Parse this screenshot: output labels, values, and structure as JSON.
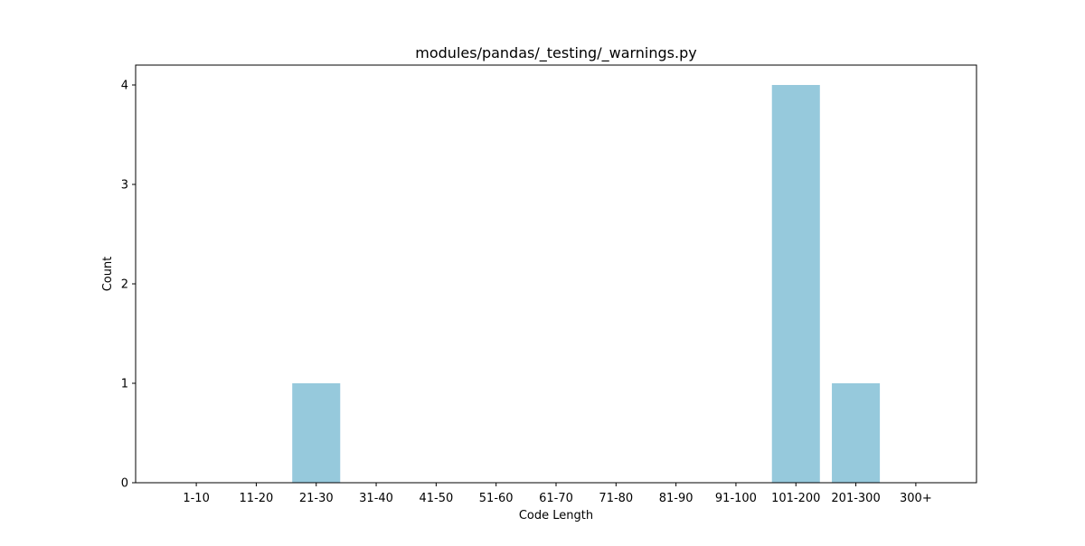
{
  "chart_data": {
    "type": "bar",
    "title": "modules/pandas/_testing/_warnings.py",
    "xlabel": "Code Length",
    "ylabel": "Count",
    "categories": [
      "1-10",
      "11-20",
      "21-30",
      "31-40",
      "41-50",
      "51-60",
      "61-70",
      "71-80",
      "81-90",
      "91-100",
      "101-200",
      "201-300",
      "300+"
    ],
    "values": [
      0,
      0,
      1,
      0,
      0,
      0,
      0,
      0,
      0,
      0,
      4,
      1,
      0
    ],
    "yticks": [
      0,
      1,
      2,
      3,
      4
    ],
    "ylim": [
      0,
      4.2
    ],
    "grid": false,
    "bar_color": "#96c9dc"
  }
}
